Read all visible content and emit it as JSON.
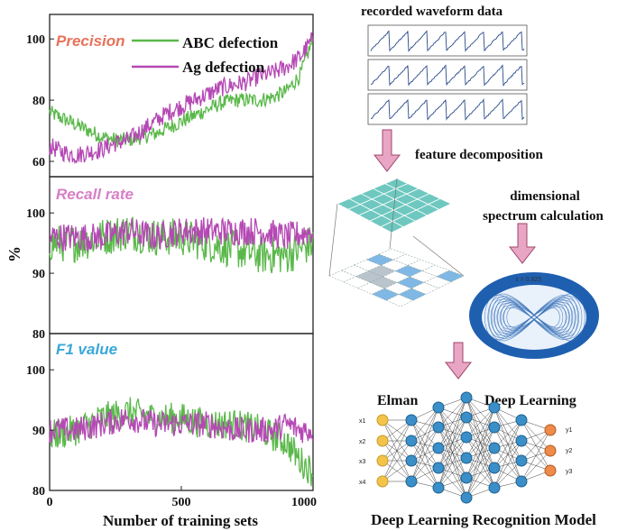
{
  "colors": {
    "green": "#5ab84a",
    "magenta": "#b548b4",
    "precision_title": "#e8725a",
    "recall_title": "#d77fc6",
    "f1_title": "#3aa7d8",
    "arrow_fill": "#e8a6c4",
    "arrow_stroke": "#a0466e",
    "grid_teal": "#6ec8c0",
    "spectrum_blue": "#1f5fb0",
    "node_yellow": "#f3c34a",
    "node_blue": "#3a8fc8",
    "node_orange": "#ef8a4a"
  },
  "legend": {
    "abc": "ABC defection",
    "ag": "Ag defection"
  },
  "axes": {
    "ylabel": "%",
    "xlabel": "Number of training sets",
    "xticks": [
      "0",
      "500",
      "1000"
    ]
  },
  "chart_data": [
    {
      "type": "line",
      "title": "Precision",
      "xlim": [
        0,
        1000
      ],
      "ylim": [
        55,
        108
      ],
      "yticks": [
        "60",
        "80",
        "100"
      ],
      "series": [
        {
          "name": "ABC defection",
          "x": [
            0,
            50,
            100,
            150,
            200,
            250,
            300,
            350,
            400,
            450,
            500,
            550,
            600,
            650,
            700,
            750,
            800,
            850,
            900,
            950,
            1000
          ],
          "y": [
            76,
            74,
            72,
            70,
            68,
            67,
            67,
            68,
            69,
            71,
            73,
            75,
            77,
            79,
            80,
            80,
            80,
            81,
            83,
            88,
            100
          ]
        },
        {
          "name": "Ag defection",
          "x": [
            0,
            50,
            100,
            150,
            200,
            250,
            300,
            350,
            400,
            450,
            500,
            550,
            600,
            650,
            700,
            750,
            800,
            850,
            900,
            950,
            1000
          ],
          "y": [
            65,
            63,
            62,
            63,
            64,
            66,
            67,
            70,
            73,
            76,
            78,
            80,
            82,
            84,
            85,
            86,
            88,
            89,
            91,
            94,
            100
          ]
        }
      ]
    },
    {
      "type": "line",
      "title": "Recall rate",
      "xlim": [
        0,
        1000
      ],
      "ylim": [
        80,
        106
      ],
      "yticks": [
        "80",
        "90",
        "100"
      ],
      "series": [
        {
          "name": "ABC defection",
          "x": [
            0,
            100,
            200,
            300,
            400,
            500,
            600,
            700,
            800,
            900,
            1000
          ],
          "y": [
            95,
            95,
            96,
            97,
            96,
            96,
            95,
            94,
            93,
            93,
            95
          ]
        },
        {
          "name": "Ag defection",
          "x": [
            0,
            100,
            200,
            300,
            400,
            500,
            600,
            700,
            800,
            900,
            1000
          ],
          "y": [
            96,
            96,
            96,
            97,
            96,
            97,
            97,
            97,
            97,
            96,
            97
          ]
        }
      ]
    },
    {
      "type": "line",
      "title": "F1 value",
      "xlim": [
        0,
        1000
      ],
      "ylim": [
        80,
        106
      ],
      "yticks": [
        "80",
        "90",
        "100"
      ],
      "series": [
        {
          "name": "ABC defection",
          "x": [
            0,
            100,
            200,
            300,
            400,
            500,
            600,
            700,
            800,
            850,
            900,
            950,
            1000
          ],
          "y": [
            89,
            90,
            92,
            93,
            92,
            92,
            91,
            91,
            90,
            89,
            88,
            85,
            83
          ]
        },
        {
          "name": "Ag defection",
          "x": [
            0,
            100,
            200,
            300,
            400,
            500,
            600,
            700,
            800,
            850,
            900,
            950,
            1000
          ],
          "y": [
            90,
            90,
            91,
            92,
            91,
            91,
            91,
            90,
            90,
            90,
            91,
            90,
            90
          ]
        }
      ]
    }
  ],
  "diagram": {
    "waveform_title": "recorded waveform data",
    "feature_label": "feature decomposition",
    "dimensional_label_1": "dimensional",
    "dimensional_label_2": "spectrum calculation",
    "spectrum_value": "ε = 0.825",
    "elman_label": "Elman",
    "deep_learning_label": "Deep Learning",
    "inputs": [
      "x1",
      "x2",
      "x3",
      "x4"
    ],
    "outputs": [
      "y1",
      "y2",
      "y3"
    ],
    "model_title": "Deep Learning Recognition Model"
  }
}
